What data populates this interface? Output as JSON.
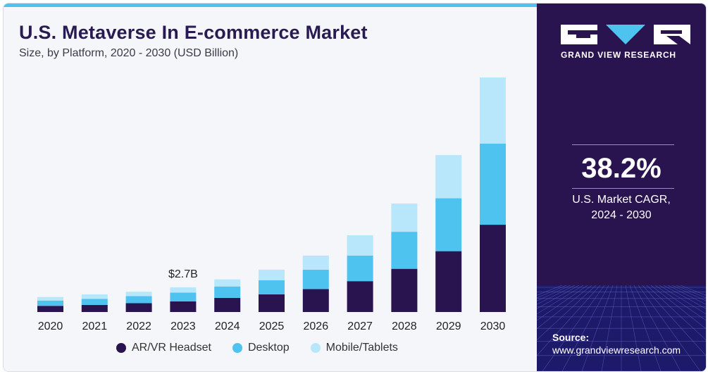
{
  "header": {
    "title": "U.S. Metaverse In E-commerce Market",
    "subtitle": "Size, by Platform, 2020 - 2030 (USD Billion)"
  },
  "chart_data": {
    "type": "bar",
    "stacked": true,
    "categories": [
      "2020",
      "2021",
      "2022",
      "2023",
      "2024",
      "2025",
      "2026",
      "2027",
      "2028",
      "2029",
      "2030"
    ],
    "series": [
      {
        "name": "AR/VR Headset",
        "color": "#2a1450",
        "values": [
          0.7,
          0.8,
          1.0,
          1.2,
          1.6,
          2.0,
          2.6,
          3.5,
          4.9,
          6.9,
          9.9
        ]
      },
      {
        "name": "Desktop",
        "color": "#4fc3f0",
        "values": [
          0.6,
          0.7,
          0.8,
          1.0,
          1.3,
          1.6,
          2.2,
          2.9,
          4.2,
          6.0,
          9.2
        ]
      },
      {
        "name": "Mobile/Tablets",
        "color": "#b8e6fa",
        "values": [
          0.4,
          0.5,
          0.5,
          0.6,
          0.8,
          1.2,
          1.6,
          2.3,
          3.2,
          4.9,
          7.5
        ]
      }
    ],
    "annotations": [
      {
        "category": "2023",
        "text": "$2.7B"
      }
    ],
    "ylim": [
      0,
      27
    ],
    "grid": false,
    "legend_position": "bottom"
  },
  "sidebar": {
    "brand_name": "GRAND VIEW RESEARCH",
    "cagr_value": "38.2%",
    "cagr_label_line1": "U.S. Market CAGR,",
    "cagr_label_line2": "2024 - 2030",
    "source_label": "Source:",
    "source_url": "www.grandviewresearch.com"
  },
  "colors": {
    "accent_bar": "#4fc3f0",
    "sidebar_bg": "#2a1450",
    "title": "#2a1a52"
  }
}
